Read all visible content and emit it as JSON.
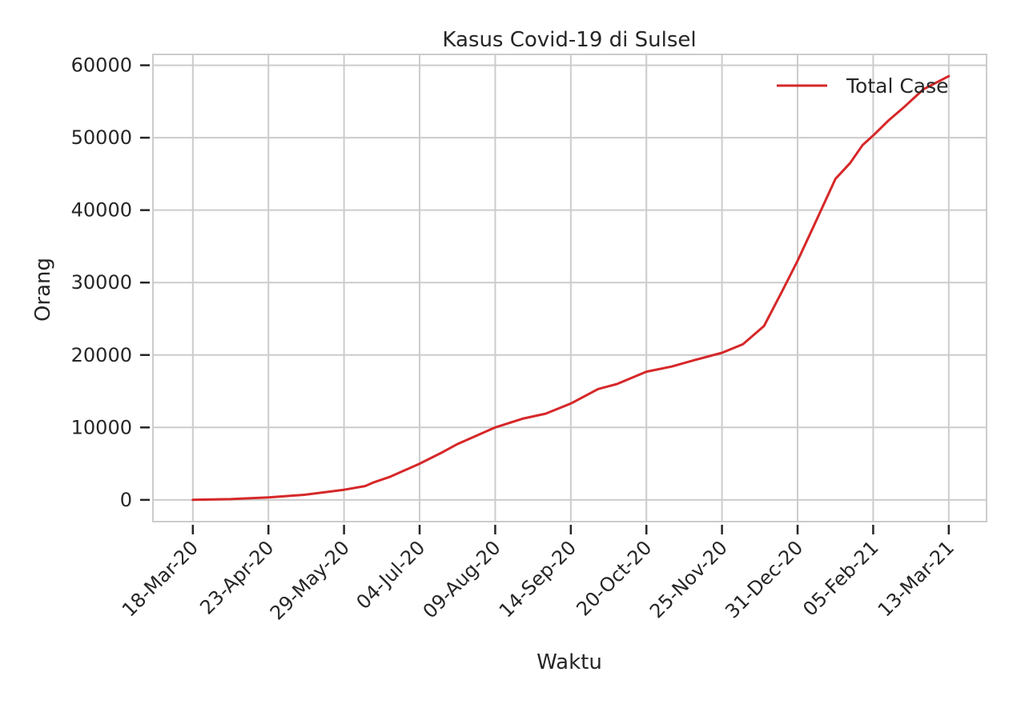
{
  "chart_data": {
    "type": "line",
    "title": "Kasus Covid-19 di Sulsel",
    "xlabel": "Waktu",
    "ylabel": "Orang",
    "x_axis": {
      "kind": "date",
      "ticks": [
        "18-Mar-20",
        "23-Apr-20",
        "29-May-20",
        "04-Jul-20",
        "09-Aug-20",
        "14-Sep-20",
        "20-Oct-20",
        "25-Nov-20",
        "31-Dec-20",
        "05-Feb-21",
        "13-Mar-21"
      ],
      "tick_dates": [
        "2020-03-18",
        "2020-04-23",
        "2020-05-29",
        "2020-07-04",
        "2020-08-09",
        "2020-09-14",
        "2020-10-20",
        "2020-11-25",
        "2020-12-31",
        "2021-02-05",
        "2021-03-13"
      ],
      "range": [
        "2020-02-28",
        "2021-03-31"
      ]
    },
    "y_axis": {
      "ticks": [
        0,
        10000,
        20000,
        30000,
        40000,
        50000,
        60000
      ],
      "range": [
        -3000,
        61500
      ]
    },
    "grid": true,
    "legend": {
      "position": "top-right",
      "entries": [
        "Total Case"
      ]
    },
    "series": [
      {
        "name": "Total Case",
        "color": "#d62728",
        "points": [
          [
            "2020-03-18",
            0
          ],
          [
            "2020-04-05",
            100
          ],
          [
            "2020-04-23",
            350
          ],
          [
            "2020-05-10",
            700
          ],
          [
            "2020-05-29",
            1400
          ],
          [
            "2020-06-08",
            1900
          ],
          [
            "2020-06-12",
            2400
          ],
          [
            "2020-06-20",
            3200
          ],
          [
            "2020-07-04",
            5000
          ],
          [
            "2020-07-15",
            6600
          ],
          [
            "2020-07-22",
            7700
          ],
          [
            "2020-08-09",
            10000
          ],
          [
            "2020-08-22",
            11200
          ],
          [
            "2020-09-02",
            11900
          ],
          [
            "2020-09-14",
            13300
          ],
          [
            "2020-09-27",
            15300
          ],
          [
            "2020-10-06",
            16000
          ],
          [
            "2020-10-20",
            17700
          ],
          [
            "2020-11-01",
            18400
          ],
          [
            "2020-11-12",
            19300
          ],
          [
            "2020-11-25",
            20300
          ],
          [
            "2020-12-05",
            21500
          ],
          [
            "2020-12-15",
            24000
          ],
          [
            "2020-12-24",
            29000
          ],
          [
            "2020-12-31",
            33000
          ],
          [
            "2021-01-08",
            38000
          ],
          [
            "2021-01-18",
            44300
          ],
          [
            "2021-01-25",
            46500
          ],
          [
            "2021-01-31",
            49000
          ],
          [
            "2021-02-05",
            50300
          ],
          [
            "2021-02-12",
            52300
          ],
          [
            "2021-02-20",
            54300
          ],
          [
            "2021-03-01",
            56700
          ],
          [
            "2021-03-13",
            58500
          ]
        ]
      }
    ]
  }
}
